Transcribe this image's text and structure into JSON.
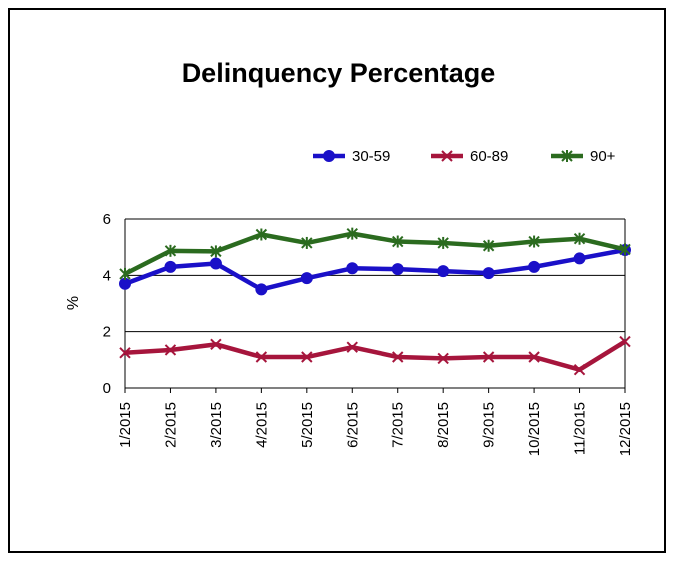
{
  "chart_data": {
    "type": "line",
    "title": "Delinquency Percentage",
    "xlabel": "",
    "ylabel": "%",
    "ylim": [
      0,
      6
    ],
    "yticks": [
      "0",
      "2",
      "4",
      "6"
    ],
    "grid": true,
    "legend_position": "top-right",
    "categories": [
      "1/2015",
      "2/2015",
      "3/2015",
      "4/2015",
      "5/2015",
      "6/2015",
      "7/2015",
      "8/2015",
      "9/2015",
      "10/2015",
      "11/2015",
      "12/2015"
    ],
    "series": [
      {
        "name": "30-59",
        "color": "#1a10c8",
        "marker": "circle",
        "values": [
          3.7,
          4.3,
          4.42,
          3.5,
          3.9,
          4.25,
          4.22,
          4.15,
          4.08,
          4.3,
          4.6,
          4.9
        ]
      },
      {
        "name": "60-89",
        "color": "#a6153c",
        "marker": "x",
        "values": [
          1.25,
          1.35,
          1.55,
          1.1,
          1.1,
          1.45,
          1.1,
          1.05,
          1.1,
          1.1,
          0.65,
          1.65
        ]
      },
      {
        "name": "90+",
        "color": "#2b6b1f",
        "marker": "asterisk",
        "values": [
          4.05,
          4.87,
          4.85,
          5.45,
          5.15,
          5.48,
          5.2,
          5.15,
          5.05,
          5.2,
          5.3,
          4.92
        ]
      }
    ]
  }
}
